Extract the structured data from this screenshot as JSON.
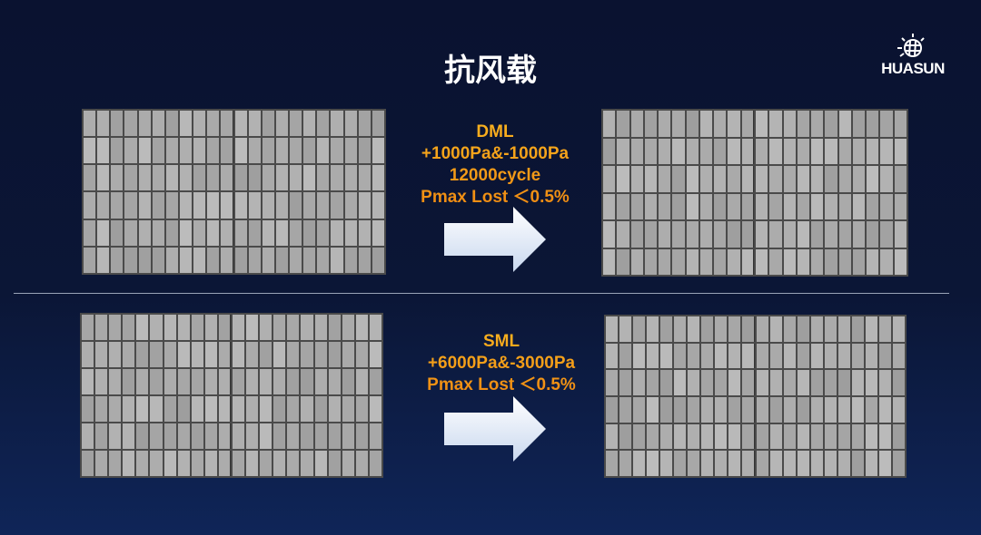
{
  "title": "抗风载",
  "logo": {
    "text": "HUASUN"
  },
  "colors": {
    "accent": "#f5a018",
    "background": "#0a1230"
  },
  "tests": [
    {
      "lines": [
        "DML",
        "+1000Pa&-1000Pa",
        "12000cycle",
        "Pmax Lost ＜0.5%"
      ],
      "arrow": "right-arrow-icon"
    },
    {
      "lines": [
        "SML",
        "+6000Pa&-3000Pa",
        "Pmax Lost ＜0.5%"
      ],
      "arrow": "right-arrow-icon"
    }
  ]
}
